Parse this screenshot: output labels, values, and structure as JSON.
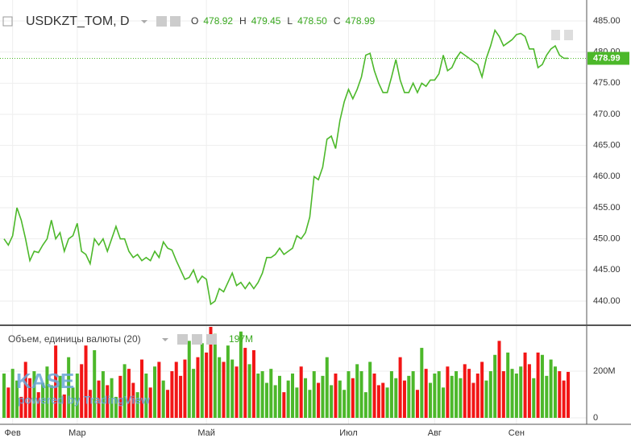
{
  "chart_data": [
    {
      "type": "line",
      "symbol": "USDKZT_TOM, D",
      "ohlc": [
        {
          "name": "O",
          "value": "478.92"
        },
        {
          "name": "H",
          "value": "479.45"
        },
        {
          "name": "L",
          "value": "478.50"
        },
        {
          "name": "C",
          "value": "478.99"
        }
      ],
      "watermark": [
        "KASE",
        "powered by TradingView"
      ],
      "categories": [
        null,
        null,
        "Фев",
        null,
        null,
        null,
        null,
        null,
        null,
        null,
        null,
        null,
        null,
        null,
        null,
        null,
        null,
        "Мар",
        null,
        null,
        null,
        null,
        null,
        null,
        null,
        null,
        null,
        null,
        null,
        null,
        null,
        null,
        null,
        null,
        null,
        null,
        null,
        null,
        null,
        null,
        null,
        null,
        null,
        null,
        null,
        null,
        null,
        "Май",
        null,
        null,
        null,
        null,
        null,
        null,
        null,
        null,
        null,
        null,
        null,
        null,
        null,
        null,
        null,
        null,
        null,
        null,
        null,
        null,
        null,
        null,
        null,
        null,
        null,
        null,
        null,
        null,
        null,
        null,
        null,
        null,
        "Июл",
        null,
        null,
        null,
        null,
        null,
        null,
        null,
        null,
        null,
        null,
        null,
        null,
        null,
        null,
        null,
        null,
        null,
        null,
        null,
        "Авг",
        null,
        null,
        null,
        null,
        null,
        null,
        null,
        null,
        null,
        null,
        null,
        null,
        null,
        null,
        null,
        null,
        null,
        null,
        "Сен",
        null,
        null,
        null,
        null,
        null,
        null,
        null,
        null,
        null,
        null,
        null,
        null
      ],
      "series": [
        {
          "name": "USDKZT_TOM",
          "color": "#4cb82a",
          "values": [
            450,
            449,
            450.5,
            455,
            453,
            450,
            446.5,
            448,
            447.8,
            449,
            450,
            453,
            450,
            451,
            448,
            450,
            450.5,
            452.5,
            448,
            447.5,
            446,
            450,
            449,
            450,
            448,
            450,
            452,
            450,
            450,
            448,
            447,
            447.5,
            446.5,
            447,
            446.5,
            448,
            447,
            449.5,
            448.5,
            448.2,
            446.5,
            445,
            443.5,
            443.8,
            445,
            443,
            444,
            443.5,
            439.5,
            440,
            442,
            441.5,
            443,
            444.5,
            442.5,
            443,
            442,
            443,
            442,
            443,
            444.5,
            447,
            447,
            447.5,
            448.5,
            447.5,
            448,
            448.5,
            450.5,
            450,
            451,
            453.5,
            460,
            459.5,
            461.5,
            466,
            466.5,
            464.5,
            469,
            472,
            474,
            472.5,
            474,
            476,
            479.5,
            479.8,
            477,
            475,
            473.5,
            473.5,
            476,
            478.8,
            475.5,
            473.5,
            473.5,
            475,
            473.5,
            475,
            474.5,
            475.5,
            475.5,
            476.5,
            479.5,
            477,
            477.5,
            479,
            480,
            479.5,
            479,
            478.5,
            478,
            476,
            479,
            481,
            483.5,
            482.5,
            481,
            481.5,
            482,
            482.8,
            483,
            482.5,
            480.5,
            480.5,
            477.5,
            478,
            479.5,
            480.5,
            481,
            479.5,
            479,
            478.99
          ]
        }
      ],
      "ylim": [
        436.25,
        488.36
      ],
      "yticks": [
        {
          "value": 440,
          "label": "440.00"
        },
        {
          "value": 445,
          "label": "445.00"
        },
        {
          "value": 450,
          "label": "450.00"
        },
        {
          "value": 455,
          "label": "455.00"
        },
        {
          "value": 460,
          "label": "460.00"
        },
        {
          "value": 465,
          "label": "465.00"
        },
        {
          "value": 470,
          "label": "470.00"
        },
        {
          "value": 475,
          "label": "475.00"
        },
        {
          "value": 480,
          "label": "480.00"
        },
        {
          "value": 485,
          "label": "485.00"
        }
      ],
      "grid": true
    },
    {
      "type": "bar",
      "title": "Объем, единицы валюты (20)",
      "last_value_label": "197M",
      "up_color": "#4cb82a",
      "down_color": "#f21515",
      "values": [
        190000000.0,
        130000000.0,
        210000000.0,
        160000000.0,
        90000000.0,
        240000000.0,
        170000000.0,
        200000000.0,
        110000000.0,
        150000000.0,
        220000000.0,
        140000000.0,
        310000000.0,
        180000000.0,
        100000000.0,
        260000000.0,
        130000000.0,
        190000000.0,
        230000000.0,
        310000000.0,
        120000000.0,
        290000000.0,
        160000000.0,
        200000000.0,
        140000000.0,
        170000000.0,
        90000000.0,
        180000000.0,
        230000000.0,
        210000000.0,
        150000000.0,
        110000000.0,
        250000000.0,
        190000000.0,
        130000000.0,
        220000000.0,
        240000000.0,
        160000000.0,
        120000000.0,
        200000000.0,
        240000000.0,
        180000000.0,
        250000000.0,
        330000000.0,
        210000000.0,
        260000000.0,
        320000000.0,
        280000000.0,
        390000000.0,
        360000000.0,
        260000000.0,
        240000000.0,
        310000000.0,
        250000000.0,
        220000000.0,
        370000000.0,
        300000000.0,
        230000000.0,
        290000000.0,
        190000000.0,
        200000000.0,
        150000000.0,
        210000000.0,
        140000000.0,
        180000000.0,
        110000000.0,
        160000000.0,
        190000000.0,
        130000000.0,
        220000000.0,
        170000000.0,
        120000000.0,
        200000000.0,
        150000000.0,
        180000000.0,
        260000000.0,
        140000000.0,
        190000000.0,
        160000000.0,
        120000000.0,
        200000000.0,
        170000000.0,
        230000000.0,
        200000000.0,
        110000000.0,
        240000000.0,
        190000000.0,
        140000000.0,
        150000000.0,
        130000000.0,
        200000000.0,
        170000000.0,
        260000000.0,
        160000000.0,
        180000000.0,
        200000000.0,
        120000000.0,
        300000000.0,
        210000000.0,
        150000000.0,
        190000000.0,
        200000000.0,
        130000000.0,
        220000000.0,
        180000000.0,
        200000000.0,
        170000000.0,
        230000000.0,
        210000000.0,
        150000000.0,
        190000000.0,
        240000000.0,
        160000000.0,
        200000000.0,
        270000000.0,
        330000000.0,
        200000000.0,
        280000000.0,
        210000000.0,
        190000000.0,
        220000000.0,
        280000000.0,
        230000000.0,
        170000000.0,
        280000000.0,
        270000000.0,
        180000000.0,
        250000000.0,
        220000000.0,
        200000000.0,
        160000000.0,
        197000000.0
      ],
      "ylim": [
        -27600000.0,
        390000000.0
      ],
      "yticks": [
        0,
        {
          "value": 200000000.0,
          "label": "200M"
        }
      ]
    }
  ]
}
